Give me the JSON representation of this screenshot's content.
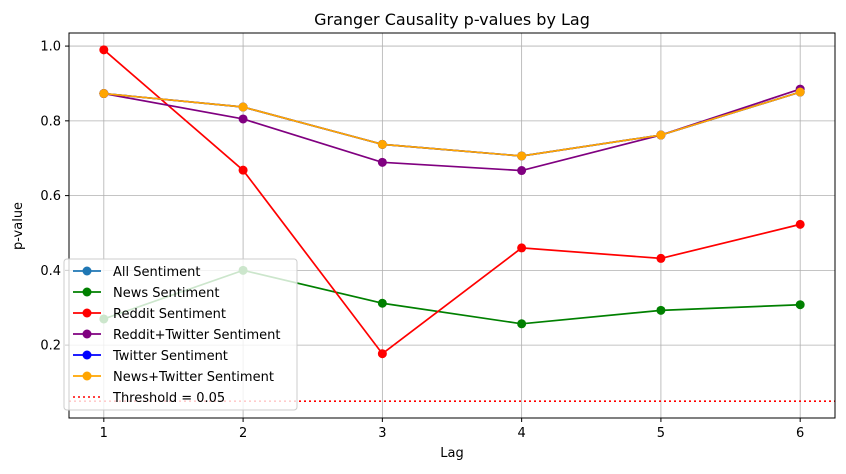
{
  "chart_data": {
    "type": "line",
    "title": "Granger Causality p-values by Lag",
    "xlabel": "Lag",
    "ylabel": "p-value",
    "x": [
      1,
      2,
      3,
      4,
      5,
      6
    ],
    "xlim": [
      0.75,
      6.25
    ],
    "ylim": [
      0.005,
      1.035
    ],
    "xticks": [
      "1",
      "2",
      "3",
      "4",
      "5",
      "6"
    ],
    "yticks": [
      {
        "value": 0.2,
        "label": "0.2"
      },
      {
        "value": 0.4,
        "label": "0.4"
      },
      {
        "value": 0.6,
        "label": "0.6"
      },
      {
        "value": 0.8,
        "label": "0.8"
      },
      {
        "value": 1.0,
        "label": "1.0"
      }
    ],
    "grid": true,
    "legend_position": "lower-left",
    "series": [
      {
        "name": "All Sentiment",
        "color": "#1f77b4",
        "values": [
          0.873,
          0.837,
          0.737,
          0.706,
          0.762,
          0.877
        ]
      },
      {
        "name": "News Sentiment",
        "color": "#008000",
        "values": [
          0.27,
          0.4,
          0.312,
          0.257,
          0.293,
          0.308
        ]
      },
      {
        "name": "Reddit Sentiment",
        "color": "#ff0000",
        "values": [
          0.99,
          0.668,
          0.177,
          0.46,
          0.432,
          0.523
        ]
      },
      {
        "name": "Reddit+Twitter Sentiment",
        "color": "#800080",
        "values": [
          0.873,
          0.805,
          0.689,
          0.667,
          0.762,
          0.885
        ]
      },
      {
        "name": "Twitter Sentiment",
        "color": "#0000ff",
        "values": [
          0.873,
          0.837,
          0.737,
          0.706,
          0.762,
          0.877
        ]
      },
      {
        "name": "News+Twitter Sentiment",
        "color": "#ffa500",
        "values": [
          0.873,
          0.837,
          0.737,
          0.706,
          0.762,
          0.877
        ]
      }
    ],
    "threshold": {
      "label": "Threshold = 0.05",
      "value": 0.05,
      "color": "#ff0000"
    }
  }
}
